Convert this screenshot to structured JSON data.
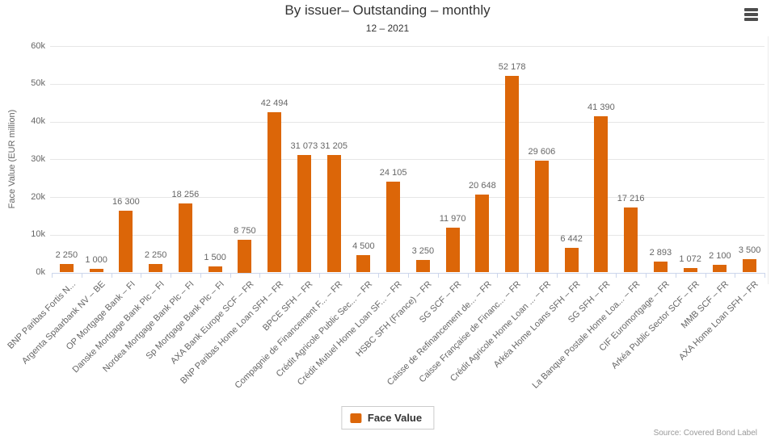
{
  "header": {
    "title": "By issuer– Outstanding – monthly",
    "subtitle": "12 – 2021",
    "menu_icon": "hamburger-icon"
  },
  "chart_data": {
    "type": "bar",
    "title": "By issuer– Outstanding – monthly",
    "subtitle": "12 – 2021",
    "xlabel": "",
    "ylabel": "Face Value (EUR million)",
    "ylim": [
      0,
      60000
    ],
    "ytick_step": 10000,
    "ytick_labels": [
      "0k",
      "10k",
      "20k",
      "30k",
      "40k",
      "50k",
      "60k"
    ],
    "grid": true,
    "legend_position": "bottom-center",
    "bar_color": "#DC6608",
    "series_name": "Face Value",
    "categories": [
      "BNP Paribas Fortis N...",
      "Argenta Spaarbank NV – BE",
      "OP Mortgage Bank – FI",
      "Danske Mortgage Bank Plc – FI",
      "Nordea Mortgage Bank Plc – FI",
      "Sp Mortgage Bank Plc – FI",
      "AXA Bank Europe SCF – FR",
      "BNP Paribas Home Loan SFH – FR",
      "BPCE SFH – FR",
      "Compagnie de Financement F... – FR",
      "Crédit Agricole Public Sec... – FR",
      "Crédit Mutuel Home Loan SF... – FR",
      "HSBC SFH (France) – FR",
      "SG SCF – FR",
      "Caisse de Refinancement de... – FR",
      "Caisse Française de Financ... – FR",
      "Crédit Agricole Home Loan ... – FR",
      "Arkéa Home Loans SFH – FR",
      "SG SFH – FR",
      "La Banque Postale Home Loa... – FR",
      "CIF Euromortgage – FR",
      "Arkéa Public Sector SCF – FR",
      "MMB SCF – FR",
      "AXA Home Loan SFH – FR"
    ],
    "values": [
      2250,
      1000,
      16300,
      2250,
      18256,
      1500,
      8750,
      42494,
      31073,
      31205,
      4500,
      24105,
      3250,
      11970,
      20648,
      52178,
      29606,
      6442,
      41390,
      17216,
      2893,
      1072,
      2100,
      3500
    ]
  },
  "legend": {
    "label": "Face Value",
    "swatch_color": "#DC6608"
  },
  "footer": {
    "source": "Source: Covered Bond Label"
  },
  "colors": {
    "bar": "#DC6608",
    "grid": "#e6e6e6",
    "axis": "#ccd6eb",
    "text_muted": "#666666",
    "text_dark": "#333333",
    "source_text": "#999999"
  }
}
